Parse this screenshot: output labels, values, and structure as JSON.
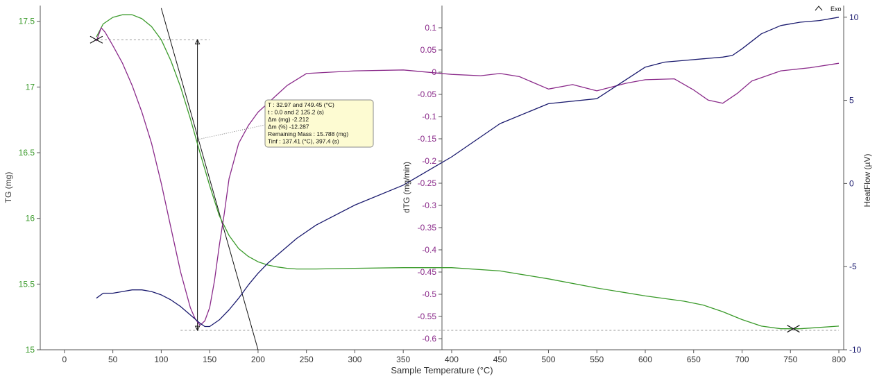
{
  "chart_data": {
    "type": "line",
    "xlabel": "Sample Temperature (°C)",
    "x_ticks": [
      0,
      50,
      100,
      150,
      200,
      250,
      300,
      350,
      400,
      450,
      500,
      550,
      600,
      650,
      700,
      750,
      800
    ],
    "xlim": [
      -25,
      805
    ],
    "axes": {
      "tg": {
        "label": "TG (mg)",
        "color": "#3a9a2a",
        "ticks": [
          15,
          15.5,
          16,
          16.5,
          17,
          17.5
        ],
        "tick_labels": [
          "15",
          "15.5",
          "16",
          "16.5",
          "17",
          "17.5"
        ],
        "lim": [
          15.0,
          17.62
        ]
      },
      "dtg": {
        "label": "dTG (mg/min)",
        "color": "#8a2a8a",
        "ticks": [
          0.1,
          0.05,
          0,
          -0.05,
          -0.1,
          -0.15,
          -0.2,
          -0.25,
          -0.3,
          -0.35,
          -0.4,
          -0.45,
          -0.5,
          -0.55,
          -0.6
        ],
        "tick_labels": [
          "0.1",
          "0.05",
          "0",
          "-0.05",
          "-0.1",
          "-0.15",
          "-0.2",
          "-0.25",
          "-0.3",
          "-0.35",
          "-0.4",
          "-0.45",
          "-0.5",
          "-0.55",
          "-0.6"
        ],
        "lim": [
          -0.625,
          0.15
        ]
      },
      "heatflow": {
        "label": "HeatFlow (µV)",
        "color": "#1a1a6e",
        "ticks": [
          10,
          5,
          0,
          -5,
          -10
        ],
        "tick_labels": [
          "10",
          "5",
          "0",
          "-5",
          "-10"
        ],
        "lim": [
          -10.0,
          10.7
        ]
      }
    },
    "legend": {
      "symbol": "^",
      "label": "Exo"
    },
    "series": [
      {
        "axis": "tg",
        "color": "#3a9a2a",
        "x": [
          33,
          40,
          50,
          60,
          70,
          80,
          90,
          100,
          110,
          120,
          130,
          140,
          150,
          160,
          170,
          180,
          190,
          200,
          210,
          220,
          230,
          240,
          260,
          300,
          350,
          400,
          450,
          500,
          550,
          600,
          640,
          660,
          680,
          700,
          720,
          740,
          760,
          780,
          800
        ],
        "y": [
          17.38,
          17.48,
          17.53,
          17.55,
          17.55,
          17.52,
          17.46,
          17.36,
          17.2,
          17.0,
          16.76,
          16.5,
          16.25,
          16.02,
          15.87,
          15.77,
          15.71,
          15.67,
          15.645,
          15.63,
          15.62,
          15.615,
          15.615,
          15.62,
          15.625,
          15.625,
          15.6,
          15.54,
          15.47,
          15.41,
          15.37,
          15.34,
          15.29,
          15.23,
          15.18,
          15.16,
          15.16,
          15.17,
          15.18
        ]
      },
      {
        "axis": "dtg",
        "color": "#8a2a8a",
        "x": [
          33,
          38,
          42,
          50,
          60,
          70,
          80,
          90,
          100,
          110,
          120,
          130,
          135,
          140,
          145,
          150,
          155,
          160,
          165,
          170,
          180,
          190,
          200,
          210,
          220,
          230,
          250,
          300,
          350,
          400,
          430,
          450,
          470,
          500,
          525,
          550,
          580,
          600,
          630,
          650,
          665,
          680,
          695,
          710,
          740,
          770,
          800
        ],
        "y": [
          0.07,
          0.1,
          0.09,
          0.06,
          0.02,
          -0.03,
          -0.09,
          -0.16,
          -0.25,
          -0.35,
          -0.45,
          -0.53,
          -0.555,
          -0.57,
          -0.56,
          -0.53,
          -0.47,
          -0.39,
          -0.32,
          -0.24,
          -0.16,
          -0.12,
          -0.09,
          -0.07,
          -0.05,
          -0.03,
          -0.003,
          0.003,
          0.005,
          -0.005,
          -0.008,
          -0.003,
          -0.01,
          -0.038,
          -0.028,
          -0.042,
          -0.025,
          -0.017,
          -0.015,
          -0.04,
          -0.063,
          -0.07,
          -0.048,
          -0.02,
          0.003,
          0.01,
          0.02
        ]
      },
      {
        "axis": "heatflow",
        "color": "#1a1a6e",
        "x": [
          33,
          40,
          50,
          60,
          70,
          80,
          90,
          100,
          110,
          120,
          130,
          140,
          145,
          150,
          160,
          170,
          180,
          190,
          200,
          210,
          220,
          230,
          240,
          260,
          300,
          350,
          400,
          450,
          500,
          550,
          600,
          620,
          640,
          660,
          680,
          690,
          700,
          720,
          740,
          760,
          780,
          800
        ],
        "y": [
          -6.9,
          -6.6,
          -6.6,
          -6.5,
          -6.4,
          -6.4,
          -6.5,
          -6.7,
          -7.0,
          -7.4,
          -7.9,
          -8.4,
          -8.6,
          -8.6,
          -8.2,
          -7.6,
          -6.9,
          -6.1,
          -5.4,
          -4.8,
          -4.3,
          -3.8,
          -3.3,
          -2.5,
          -1.3,
          -0.1,
          1.6,
          3.6,
          4.8,
          5.1,
          7.0,
          7.3,
          7.4,
          7.5,
          7.6,
          7.7,
          8.1,
          9.0,
          9.5,
          9.7,
          9.8,
          10.0
        ]
      }
    ],
    "annotation": {
      "lines": [
        "T : 32.97 and 749.45 (°C)",
        "t : 0.0 and 2 125.2 (s)",
        "Δm (mg) -2.212",
        "Δm (%) -12.287",
        "Remaining Mass : 15.788 (mg)",
        "Tinf : 137.41 (°C), 397.4 (s)"
      ],
      "background": "#fdfbd2",
      "anchor": {
        "x": 137.41,
        "y": 16.6
      },
      "box_at": {
        "x": 200,
        "y": 16.6
      }
    },
    "mass_change": {
      "x": 137.41,
      "upper_mass": 17.36,
      "upper_from_x": 33,
      "upper_to_x": 150,
      "lower_mass": 15.148,
      "lower_from_x": 120,
      "lower_to_x": 800
    },
    "tangent": {
      "from": [
        100,
        17.6
      ],
      "to": [
        200,
        15.0
      ]
    },
    "markers": [
      {
        "symbol": "X",
        "x": 33,
        "y": 17.36
      },
      {
        "symbol": "X",
        "x": 753,
        "y": 15.16
      }
    ]
  }
}
